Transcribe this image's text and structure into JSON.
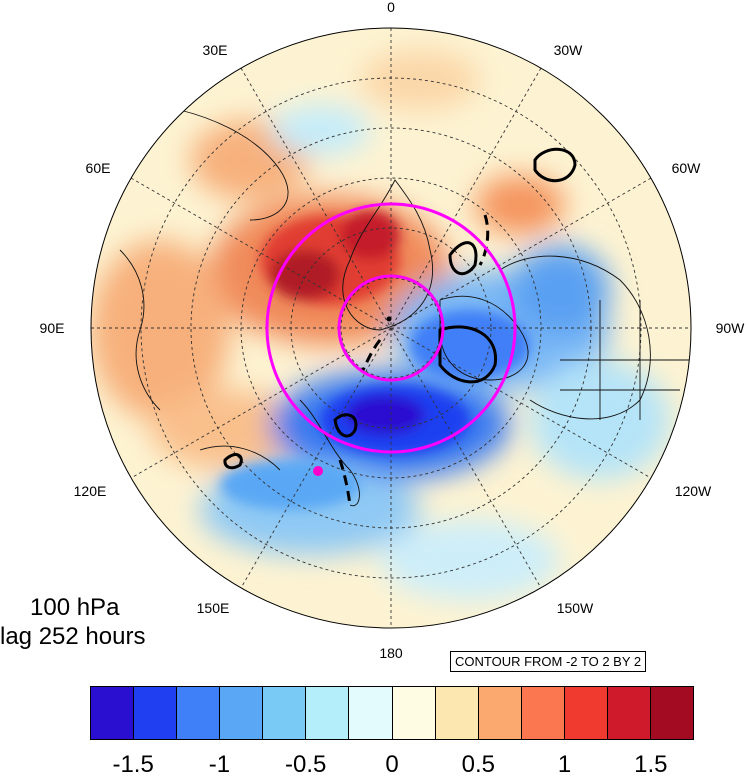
{
  "longitude_labels": [
    "0",
    "30W",
    "60W",
    "90W",
    "120W",
    "150W",
    "180",
    "150E",
    "120E",
    "90E",
    "60E",
    "30E"
  ],
  "panel": {
    "level": "100 hPa",
    "lag": "lag 252 hours"
  },
  "contour_note": "CONTOUR FROM -2 TO 2 BY 2",
  "colorbar": {
    "colors": [
      "#2a0fd0",
      "#1f3ff0",
      "#3f7ff7",
      "#5aa8f5",
      "#79cbf5",
      "#b4eefa",
      "#e3fbfc",
      "#fffce4",
      "#fde7b0",
      "#fca970",
      "#fa774f",
      "#f03a30",
      "#cf1a2c",
      "#a30b22"
    ],
    "tick_labels": [
      "-1.5",
      "-1",
      "-0.5",
      "0",
      "0.5",
      "1",
      "1.5"
    ]
  },
  "colors": {
    "circle": "#ff00ff",
    "contour": "#000000",
    "point": "#ff00cc"
  }
}
